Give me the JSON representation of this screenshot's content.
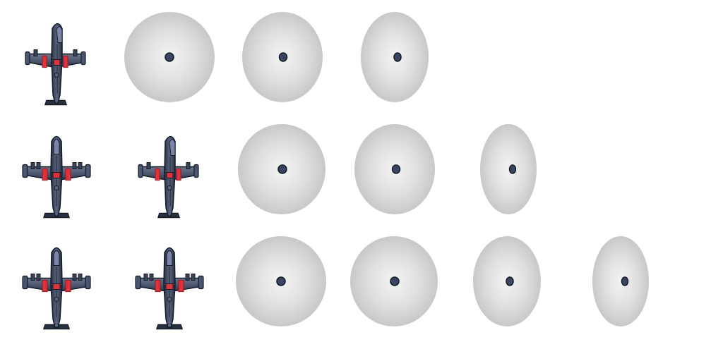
{
  "sprite_sheet": {
    "colors": {
      "background": "#ffffff",
      "hull_dark": "#1f2533",
      "hull_mid": "#3a4257",
      "hull_light": "#5a6680",
      "hull_highlight": "#7a88a6",
      "accent_red": "#e0323c",
      "accent_red_dark": "#9c1f2a",
      "blur_edge": "#c9c9c9",
      "blur_center": "#f2f2f2",
      "hub": "#3a4660",
      "hub_outline": "#141a26"
    },
    "rows": [
      {
        "row": 1,
        "frames": [
          {
            "kind": "aircraft",
            "variant": "turned",
            "icon": "fighter-jet-icon"
          },
          {
            "kind": "propeller-blur",
            "icon": "propeller-blur-icon"
          },
          {
            "kind": "propeller-blur",
            "icon": "propeller-blur-icon"
          },
          {
            "kind": "propeller-blur",
            "icon": "propeller-blur-icon"
          }
        ]
      },
      {
        "row": 2,
        "frames": [
          {
            "kind": "aircraft",
            "variant": "straight",
            "icon": "fighter-jet-icon"
          },
          {
            "kind": "aircraft",
            "variant": "turned",
            "icon": "fighter-jet-icon"
          },
          {
            "kind": "propeller-blur",
            "icon": "propeller-blur-icon"
          },
          {
            "kind": "propeller-blur",
            "icon": "propeller-blur-icon"
          },
          {
            "kind": "propeller-blur",
            "icon": "propeller-blur-icon"
          }
        ]
      },
      {
        "row": 3,
        "frames": [
          {
            "kind": "aircraft",
            "variant": "straight",
            "icon": "fighter-jet-icon"
          },
          {
            "kind": "aircraft",
            "variant": "straight",
            "icon": "fighter-jet-icon"
          },
          {
            "kind": "propeller-blur",
            "icon": "propeller-blur-icon"
          },
          {
            "kind": "propeller-blur",
            "icon": "propeller-blur-icon"
          },
          {
            "kind": "propeller-blur",
            "icon": "propeller-blur-icon"
          },
          {
            "kind": "propeller-blur",
            "icon": "propeller-blur-icon"
          }
        ]
      }
    ]
  }
}
